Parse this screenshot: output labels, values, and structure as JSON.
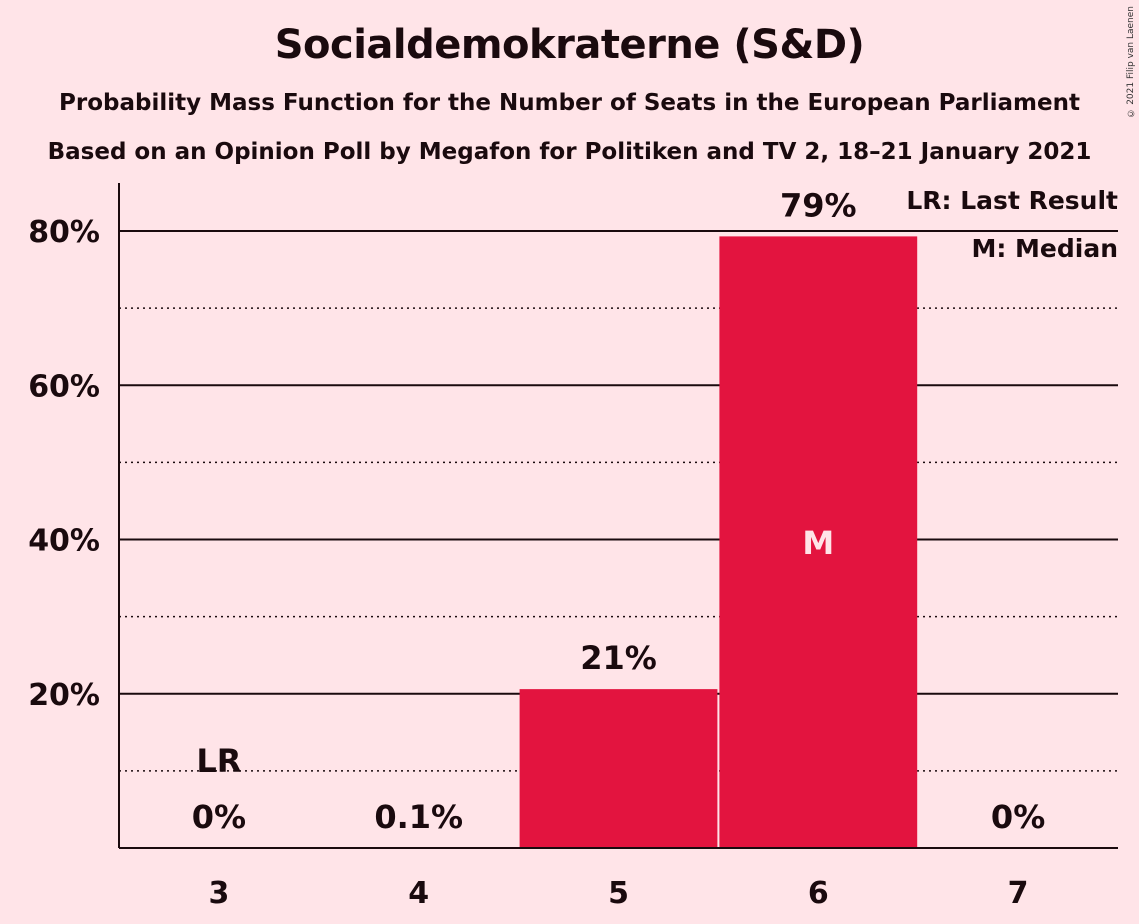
{
  "title": "Socialdemokraterne (S&D)",
  "subtitle_1": "Probability Mass Function for the Number of Seats in the European Parliament",
  "subtitle_2": "Based on an Opinion Poll by Megafon for Politiken and TV 2, 18–21 January 2021",
  "copyright": "© 2021 Filip van Laenen",
  "legend": {
    "last_result": "LR: Last Result",
    "median": "M: Median"
  },
  "colors": {
    "background": "#FFE4E8",
    "bar": "#E3143F",
    "text": "#1a0a0e"
  },
  "chart_data": {
    "type": "bar",
    "categories": [
      "3",
      "4",
      "5",
      "6",
      "7"
    ],
    "values": [
      0,
      0.1,
      20.6,
      79.3,
      0
    ],
    "data_labels": [
      "0%",
      "0.1%",
      "21%",
      "79%",
      "0%"
    ],
    "ylim": [
      0,
      85
    ],
    "y_ticks": [
      20,
      40,
      60,
      80
    ],
    "y_tick_labels": [
      "20%",
      "40%",
      "60%",
      "80%"
    ],
    "y_minor_ticks": [
      10,
      30,
      50,
      70
    ],
    "last_result_category": "3",
    "last_result_label": "LR",
    "median_category": "6",
    "median_label": "M",
    "legend_position": "top-right"
  }
}
